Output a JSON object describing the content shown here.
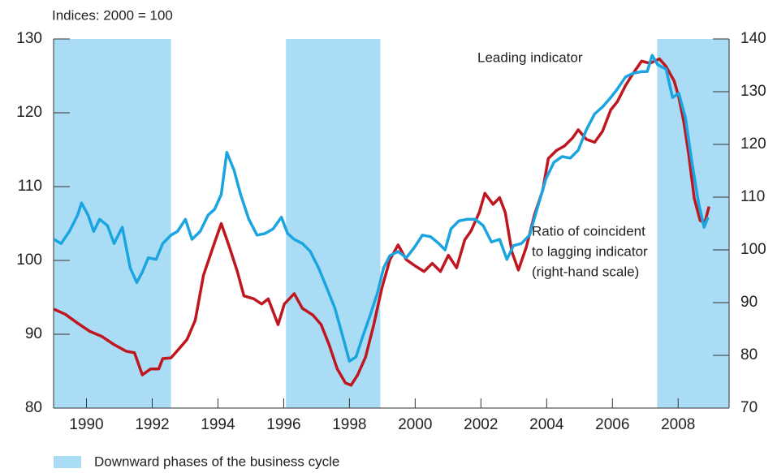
{
  "chart_data": {
    "type": "line",
    "ylabel": "Indices: 2000 = 100",
    "xlim": [
      1989,
      2009.55
    ],
    "xticks": [
      1990,
      1992,
      1994,
      1996,
      1998,
      2000,
      2002,
      2004,
      2006,
      2008
    ],
    "ylim": [
      80,
      130
    ],
    "yticks": [
      80,
      90,
      100,
      110,
      120,
      130
    ],
    "y2lim": [
      70,
      140
    ],
    "y2ticks": [
      70,
      80,
      90,
      100,
      110,
      120,
      130,
      140
    ],
    "grid": false,
    "annotations": [
      "Leading indicator",
      "Ratio of coincident",
      "to lagging indicator",
      "(right-hand scale)"
    ],
    "shaded": {
      "label": "Downward phases of the business cycle",
      "color": "#aadcf5",
      "periods": [
        [
          1989,
          1992.57
        ],
        [
          1996.07,
          1998.94
        ],
        [
          2007.36,
          2009.55
        ]
      ]
    },
    "series": [
      {
        "name": "Leading indicator",
        "color": "#c0161f",
        "axis": "y",
        "x": [
          1989.01,
          1989.36,
          1989.73,
          1990.1,
          1990.47,
          1990.84,
          1991.21,
          1991.46,
          1991.7,
          1991.95,
          1992.2,
          1992.32,
          1992.57,
          1992.81,
          1993.06,
          1993.31,
          1993.56,
          1993.85,
          1994.1,
          1994.35,
          1994.59,
          1994.79,
          1995.09,
          1995.33,
          1995.53,
          1995.83,
          1996.02,
          1996.32,
          1996.57,
          1996.89,
          1997.14,
          1997.38,
          1997.63,
          1997.88,
          1998.05,
          1998.25,
          1998.49,
          1998.74,
          1998.99,
          1999.23,
          1999.48,
          1999.73,
          2000.02,
          2000.27,
          2000.52,
          2000.77,
          2001.01,
          2001.26,
          2001.51,
          2001.7,
          2001.95,
          2002.12,
          2002.37,
          2002.57,
          2002.74,
          2002.94,
          2003.14,
          2003.38,
          2003.63,
          2003.88,
          2004.05,
          2004.3,
          2004.54,
          2004.79,
          2004.96,
          2005.21,
          2005.46,
          2005.7,
          2005.95,
          2006.15,
          2006.4,
          2006.64,
          2006.89,
          2007.14,
          2007.43,
          2007.63,
          2007.88,
          2008.02,
          2008.17,
          2008.32,
          2008.49,
          2008.67,
          2008.81,
          2008.94
        ],
        "values": [
          93.4,
          92.7,
          91.5,
          90.4,
          89.7,
          88.6,
          87.7,
          87.5,
          84.5,
          85.3,
          85.3,
          86.7,
          86.8,
          88,
          89.3,
          91.9,
          98,
          101.8,
          105,
          101.8,
          98.5,
          95.2,
          94.8,
          94.1,
          94.8,
          91.3,
          94.1,
          95.5,
          93.5,
          92.6,
          91.3,
          88.6,
          85.3,
          83.4,
          83.1,
          84.5,
          86.9,
          91.3,
          96.3,
          100.1,
          102.1,
          100.1,
          99.2,
          98.5,
          99.6,
          98.5,
          100.7,
          99,
          102.8,
          104,
          106.5,
          109.1,
          107.6,
          108.5,
          106.5,
          101.2,
          98.7,
          101.8,
          106.2,
          109.5,
          113.8,
          114.9,
          115.5,
          116.6,
          117.7,
          116.4,
          116,
          117.5,
          120.4,
          121.5,
          123.7,
          125.4,
          127,
          126.7,
          127.3,
          126.3,
          124.3,
          122.1,
          118.8,
          114.4,
          108.4,
          105.4,
          105.1,
          107.3
        ]
      },
      {
        "name": "Ratio of coincident to lagging indicator",
        "color": "#1ba5e0",
        "axis": "y2",
        "x": [
          1989.01,
          1989.23,
          1989.48,
          1989.73,
          1989.85,
          1990.05,
          1990.22,
          1990.4,
          1990.64,
          1990.84,
          1991.09,
          1991.33,
          1991.53,
          1991.7,
          1991.88,
          1992.12,
          1992.32,
          1992.57,
          1992.77,
          1993.01,
          1993.21,
          1993.46,
          1993.7,
          1993.9,
          1994.1,
          1994.27,
          1994.49,
          1994.69,
          1994.94,
          1995.19,
          1995.43,
          1995.68,
          1995.93,
          1996.12,
          1996.32,
          1996.57,
          1996.81,
          1997.06,
          1997.31,
          1997.56,
          1997.8,
          1998.0,
          1998.2,
          1998.4,
          1998.62,
          1998.86,
          1999.04,
          1999.23,
          1999.48,
          1999.73,
          1999.98,
          2000.22,
          2000.47,
          2000.72,
          2000.91,
          2001.09,
          2001.33,
          2001.58,
          2001.83,
          2002.07,
          2002.32,
          2002.57,
          2002.79,
          2002.99,
          2003.23,
          2003.48,
          2003.73,
          2003.98,
          2004.22,
          2004.47,
          2004.72,
          2004.96,
          2005.21,
          2005.46,
          2005.7,
          2005.95,
          2006.15,
          2006.4,
          2006.64,
          2006.89,
          2007.06,
          2007.21,
          2007.38,
          2007.63,
          2007.83,
          2008.02,
          2008.22,
          2008.42,
          2008.62,
          2008.79,
          2008.91
        ],
        "values": [
          102,
          101.2,
          103.5,
          106.6,
          108.9,
          106.6,
          103.5,
          105.8,
          104.6,
          101.2,
          104.3,
          96.6,
          93.8,
          95.8,
          98.5,
          98.2,
          101.2,
          102.8,
          103.5,
          105.8,
          102,
          103.5,
          106.6,
          107.7,
          110.5,
          118.5,
          115.1,
          110.5,
          105.8,
          102.8,
          103.1,
          104,
          106.2,
          103.1,
          102,
          101.2,
          99.7,
          96.6,
          92.8,
          88.9,
          83.5,
          78.9,
          79.7,
          83.5,
          87.4,
          92,
          96.6,
          98.9,
          99.7,
          98.5,
          100.5,
          102.8,
          102.5,
          101.2,
          100,
          104,
          105.5,
          105.8,
          105.8,
          104.6,
          101.5,
          102,
          98.2,
          100.8,
          101.2,
          102.8,
          108.2,
          113.5,
          116.6,
          117.7,
          117.4,
          118.9,
          122.8,
          125.8,
          127.1,
          128.9,
          130.5,
          132.8,
          133.5,
          133.8,
          133.8,
          136.9,
          135.1,
          134.3,
          128.9,
          129.7,
          125.1,
          116.6,
          108.9,
          104.3,
          106.2
        ]
      }
    ]
  }
}
